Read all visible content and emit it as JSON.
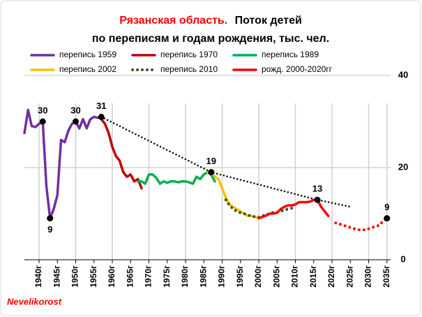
{
  "chart_data": {
    "type": "line",
    "title_region": "Рязанская   область.",
    "title": "Поток  детей",
    "subtitle": "по переписям и годам рождения, тыс. чел.",
    "source": "Nevelikorost",
    "xlim": [
      1936,
      2036
    ],
    "xticks": [
      {
        "value": 1940,
        "label": "1940г"
      },
      {
        "value": 1945,
        "label": "1945г"
      },
      {
        "value": 1950,
        "label": "1950г"
      },
      {
        "value": 1955,
        "label": "1955г"
      },
      {
        "value": 1960,
        "label": "1960г"
      },
      {
        "value": 1965,
        "label": "1965г"
      },
      {
        "value": 1970,
        "label": "1970г"
      },
      {
        "value": 1975,
        "label": "1975г"
      },
      {
        "value": 1980,
        "label": "1980г"
      },
      {
        "value": 1985,
        "label": "1985г"
      },
      {
        "value": 1990,
        "label": "1990г"
      },
      {
        "value": 1995,
        "label": "1995г"
      },
      {
        "value": 2000,
        "label": "2000г"
      },
      {
        "value": 2005,
        "label": "2005г"
      },
      {
        "value": 2010,
        "label": "2010г"
      },
      {
        "value": 2015,
        "label": "2015г"
      },
      {
        "value": 2020,
        "label": "2020г"
      },
      {
        "value": 2025,
        "label": "2025г"
      },
      {
        "value": 2030,
        "label": "2030г"
      },
      {
        "value": 2035,
        "label": "2035г"
      }
    ],
    "ylim": [
      0,
      40
    ],
    "yticks": [
      0,
      20,
      40
    ],
    "grid": true,
    "series": [
      {
        "name": "перепись 1959",
        "color": "#7030a0",
        "style": "solid",
        "x": [
          1936,
          1937,
          1938,
          1939,
          1940,
          1941,
          1942,
          1943,
          1944,
          1945,
          1946,
          1947,
          1948,
          1949,
          1950,
          1951,
          1952,
          1953,
          1954,
          1955,
          1956,
          1957
        ],
        "values": [
          27.5,
          32.5,
          29,
          28.8,
          29.5,
          30,
          16,
          9,
          11,
          14,
          26,
          25.5,
          28,
          29.5,
          30,
          28.5,
          30.5,
          28.5,
          30.5,
          31,
          30.8,
          31
        ]
      },
      {
        "name": "перепись 1970",
        "color": "#c00000",
        "style": "solid",
        "x": [
          1957,
          1958,
          1959,
          1960,
          1961,
          1962,
          1963,
          1964,
          1965,
          1966,
          1967,
          1968
        ],
        "values": [
          30.5,
          29.5,
          27.5,
          24.5,
          22.5,
          21.5,
          19,
          18,
          18.5,
          17,
          17.5,
          15.5
        ]
      },
      {
        "name": "перепись 1989",
        "color": "#00b050",
        "style": "solid",
        "x": [
          1967,
          1968,
          1969,
          1970,
          1971,
          1972,
          1973,
          1974,
          1975,
          1976,
          1977,
          1978,
          1979,
          1980,
          1981,
          1982,
          1983,
          1984,
          1985,
          1986,
          1987,
          1988
        ],
        "values": [
          17,
          17,
          16.5,
          18.5,
          18.5,
          17.8,
          16.5,
          17,
          16.7,
          17,
          17,
          16.8,
          17,
          17,
          16.8,
          16.5,
          18,
          17.5,
          18.5,
          19,
          18.5,
          17
        ]
      },
      {
        "name": "перепись 2002",
        "color": "#ffc000",
        "style": "solid",
        "x": [
          1986,
          1987,
          1988,
          1989,
          1990,
          1991,
          1992,
          1993,
          1994,
          1995,
          1996,
          1997,
          1998,
          1999,
          2000,
          2001
        ],
        "values": [
          19,
          19,
          18,
          17.5,
          15.5,
          13.5,
          12,
          11.5,
          11,
          10.5,
          10,
          9.5,
          9.5,
          9.3,
          9,
          9.3
        ]
      },
      {
        "name": "перепись 2010",
        "color": "#375623",
        "style": "dotted",
        "x": [
          1991,
          1992,
          1993,
          1994,
          1995,
          1996,
          1997,
          1998,
          1999,
          2000,
          2001,
          2002,
          2003,
          2004,
          2005,
          2006,
          2007,
          2008,
          2009,
          2010
        ],
        "values": [
          13,
          11.8,
          11,
          10.5,
          10.2,
          10,
          9.7,
          9.5,
          9.3,
          9.2,
          9.5,
          9.8,
          10,
          10.3,
          10.3,
          10.5,
          10.8,
          11,
          11.2,
          11.4
        ]
      },
      {
        "name": "рожд. 2000-2020гг",
        "color": "#ff0000",
        "style": "solid",
        "x": [
          2000,
          2001,
          2002,
          2003,
          2004,
          2005,
          2006,
          2007,
          2008,
          2009,
          2010,
          2011,
          2012,
          2013,
          2014,
          2015,
          2016,
          2017,
          2018,
          2019
        ],
        "values": [
          9,
          9.3,
          9.6,
          10,
          10,
          10.2,
          11,
          11.5,
          11.8,
          11.8,
          12,
          12.5,
          12.5,
          12.5,
          12.6,
          13,
          13,
          11.5,
          10.5,
          9.5
        ]
      },
      {
        "color": "#ff0000",
        "style": "dotted",
        "x": [
          2021,
          2023,
          2025,
          2027,
          2029,
          2031,
          2033,
          2034,
          2035
        ],
        "values": [
          8,
          7.5,
          7,
          6.5,
          6.5,
          7,
          7.5,
          8.5,
          9
        ]
      },
      {
        "color": "#000000",
        "style": "dotted-thin",
        "x": [
          1957,
          1987,
          2016,
          2025
        ],
        "values": [
          31,
          19,
          13,
          11.5
        ]
      }
    ],
    "annotations": [
      {
        "x": 1941,
        "y": 30
      },
      {
        "x": 1943,
        "y": 9
      },
      {
        "x": 1950,
        "y": 30
      },
      {
        "x": 1957,
        "y": 31
      },
      {
        "x": 1987,
        "y": 19
      },
      {
        "x": 2016,
        "y": 13
      },
      {
        "x": 2035,
        "y": 9
      }
    ]
  }
}
